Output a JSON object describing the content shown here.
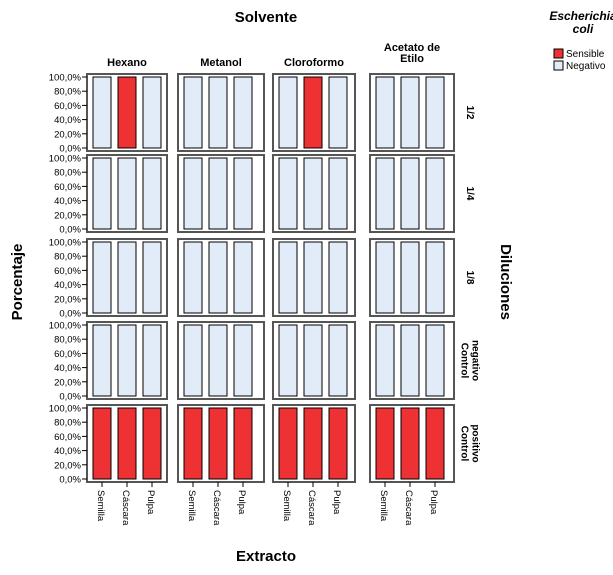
{
  "chart_data": {
    "type": "bar",
    "title": "Solvente",
    "xlabel": "Extracto",
    "ylabel": "Porcentaje",
    "row_axis_label": "Diluciones",
    "legend": {
      "title_lines": [
        "Escherichia",
        "coli"
      ],
      "entries": [
        {
          "name": "Sensible",
          "color": "#ee3233"
        },
        {
          "name": "Negativo",
          "color": "#e2ecf8"
        }
      ]
    },
    "columns": [
      {
        "lines": [
          "Hexano"
        ]
      },
      {
        "lines": [
          "Metanol"
        ]
      },
      {
        "lines": [
          "Cloroformo"
        ]
      },
      {
        "lines": [
          "Acetato de",
          "Etilo"
        ]
      }
    ],
    "rows": [
      {
        "lines": [
          "1/2"
        ]
      },
      {
        "lines": [
          "1/4"
        ]
      },
      {
        "lines": [
          "1/8"
        ]
      },
      {
        "lines": [
          "Control",
          "negativo"
        ]
      },
      {
        "lines": [
          "Control",
          "positivo"
        ]
      }
    ],
    "categories": [
      "Semilla",
      "Cáscara",
      "Pulpa"
    ],
    "y_ticks": [
      "0,0%",
      "20,0%",
      "40,0%",
      "60,0%",
      "80,0%",
      "100,0%"
    ],
    "ylim": [
      0,
      100
    ],
    "value": 100,
    "results": [
      [
        [
          "Negativo",
          "Sensible",
          "Negativo"
        ],
        [
          "Negativo",
          "Negativo",
          "Negativo"
        ],
        [
          "Negativo",
          "Sensible",
          "Negativo"
        ],
        [
          "Negativo",
          "Negativo",
          "Negativo"
        ]
      ],
      [
        [
          "Negativo",
          "Negativo",
          "Negativo"
        ],
        [
          "Negativo",
          "Negativo",
          "Negativo"
        ],
        [
          "Negativo",
          "Negativo",
          "Negativo"
        ],
        [
          "Negativo",
          "Negativo",
          "Negativo"
        ]
      ],
      [
        [
          "Negativo",
          "Negativo",
          "Negativo"
        ],
        [
          "Negativo",
          "Negativo",
          "Negativo"
        ],
        [
          "Negativo",
          "Negativo",
          "Negativo"
        ],
        [
          "Negativo",
          "Negativo",
          "Negativo"
        ]
      ],
      [
        [
          "Negativo",
          "Negativo",
          "Negativo"
        ],
        [
          "Negativo",
          "Negativo",
          "Negativo"
        ],
        [
          "Negativo",
          "Negativo",
          "Negativo"
        ],
        [
          "Negativo",
          "Negativo",
          "Negativo"
        ]
      ],
      [
        [
          "Sensible",
          "Sensible",
          "Sensible"
        ],
        [
          "Sensible",
          "Sensible",
          "Sensible"
        ],
        [
          "Sensible",
          "Sensible",
          "Sensible"
        ],
        [
          "Sensible",
          "Sensible",
          "Sensible"
        ]
      ]
    ],
    "colors": {
      "panel_border": "#555555",
      "panel_fill": "#ffffff",
      "bar_outline": "#000000"
    }
  }
}
